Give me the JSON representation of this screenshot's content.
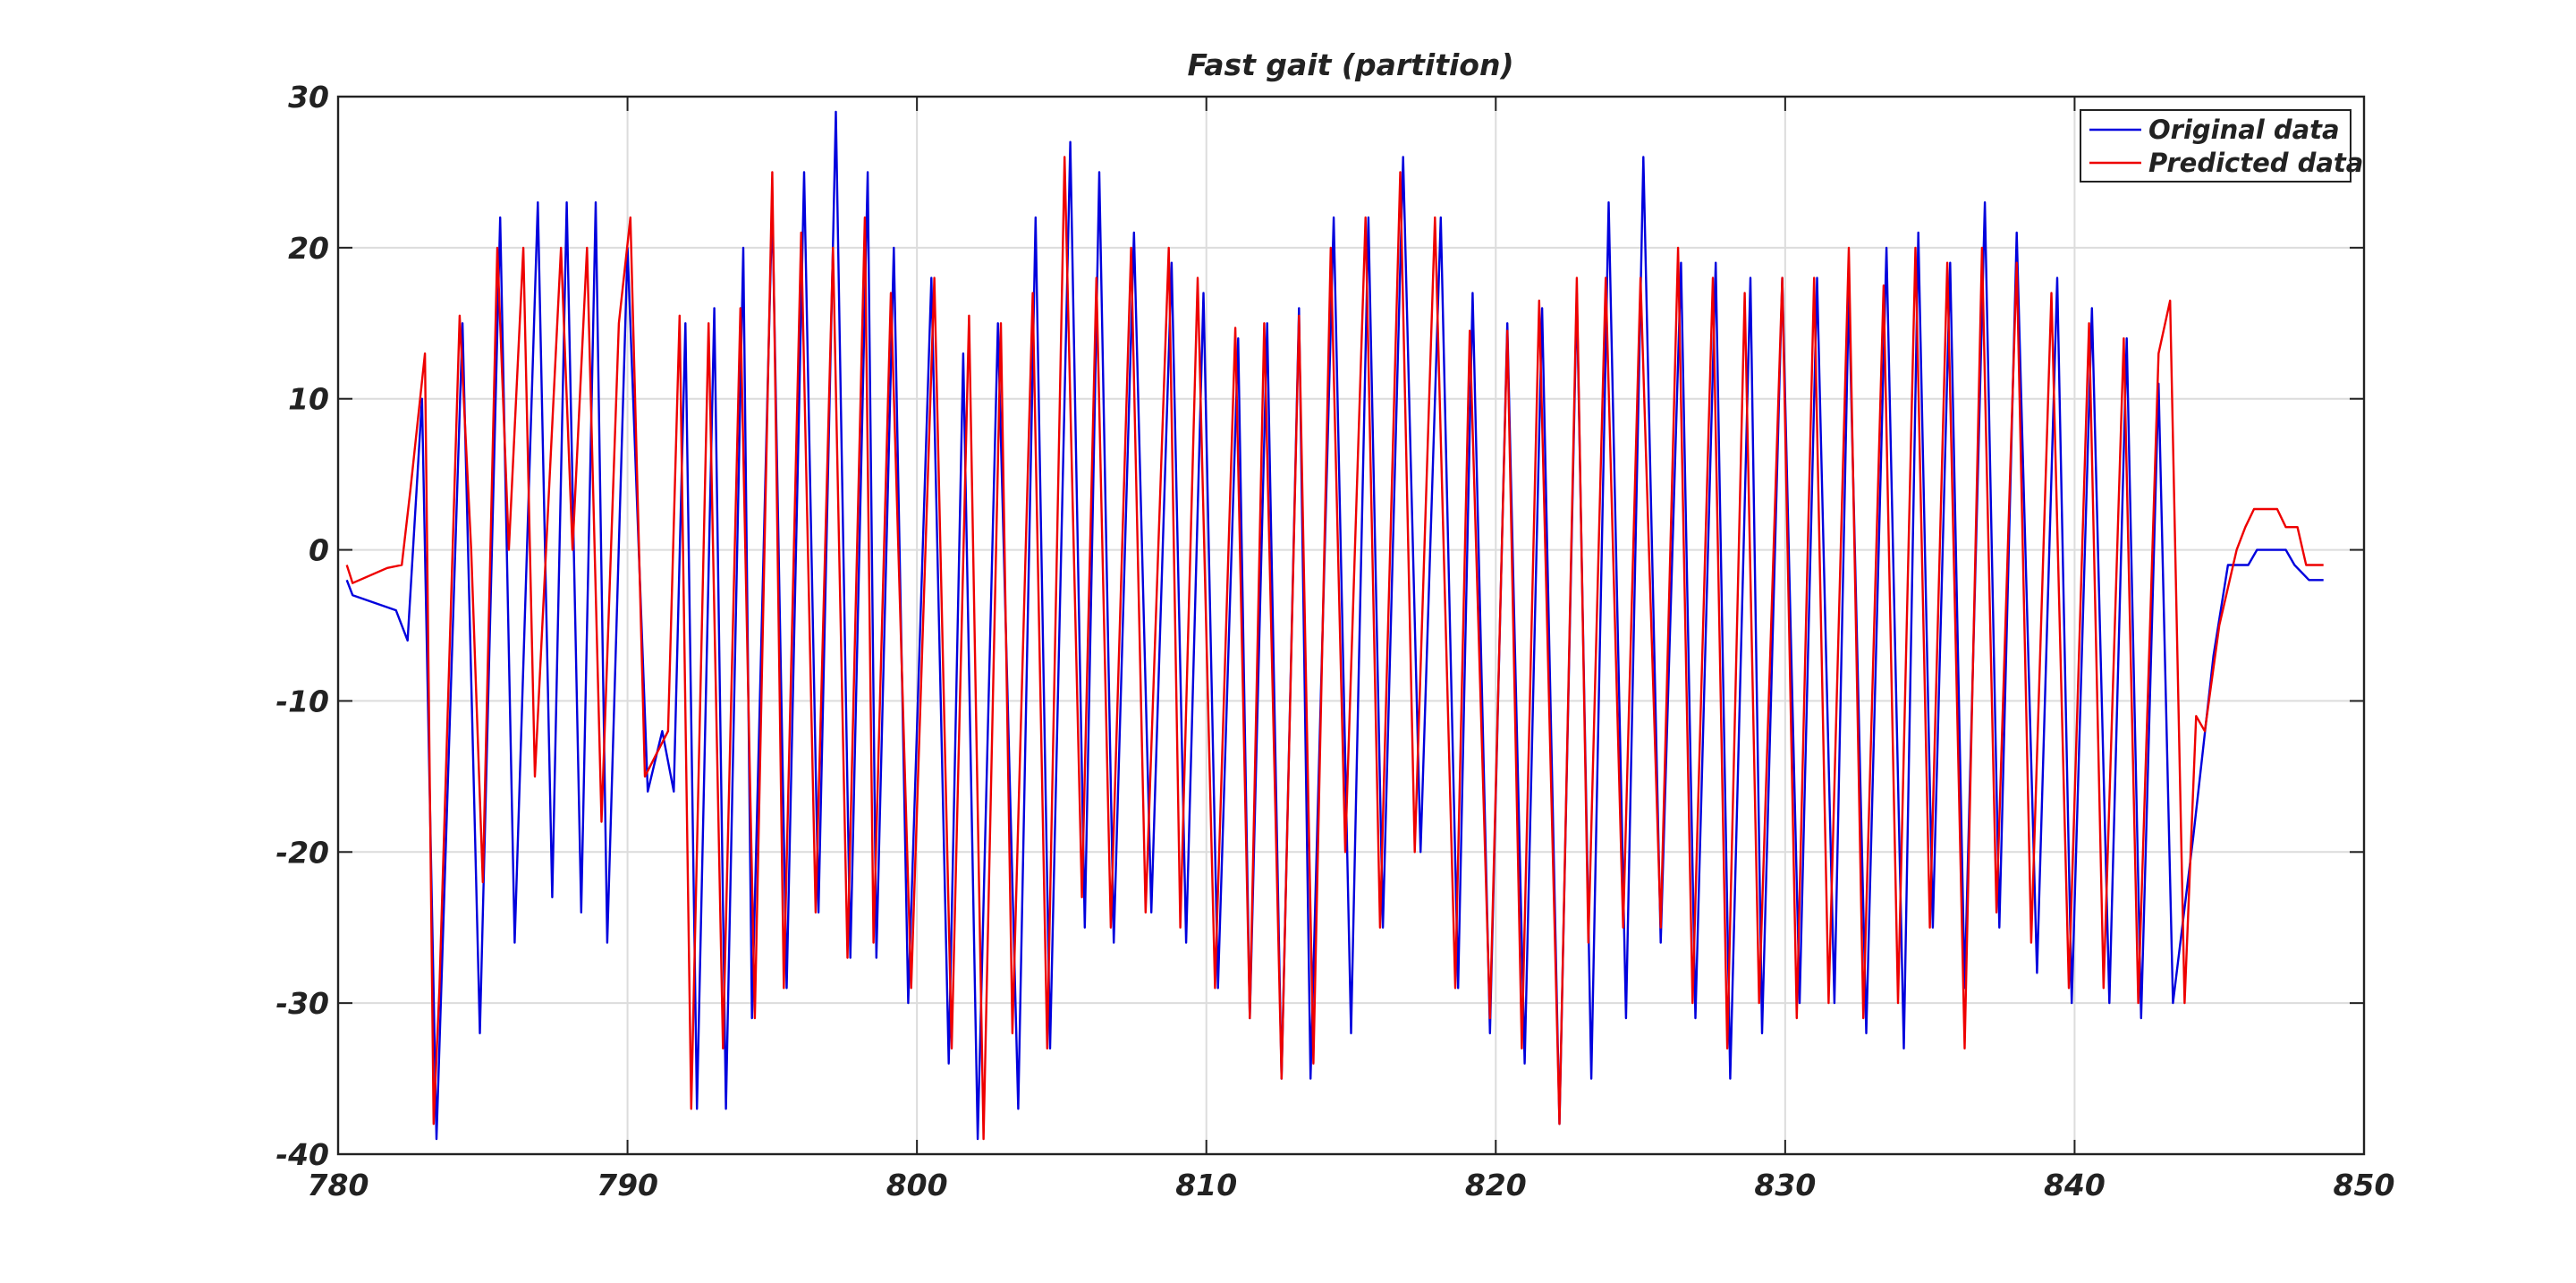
{
  "chart_data": {
    "type": "line",
    "title": "Fast gait (partition)",
    "xlim": [
      780,
      850
    ],
    "xticks": [
      780,
      790,
      800,
      810,
      820,
      830,
      840,
      850
    ],
    "ylim": [
      -40,
      30
    ],
    "yticks": [
      -40,
      -30,
      -20,
      -10,
      0,
      10,
      20,
      30
    ],
    "grid": true,
    "legend": "northeast",
    "series": [
      {
        "name": "Original data",
        "color": "#0000dd",
        "x": [
          780.3,
          780.5,
          782.0,
          782.4,
          782.9,
          783.4,
          784.3,
          784.9,
          785.6,
          786.1,
          786.9,
          787.4,
          787.9,
          788.4,
          788.9,
          789.3,
          790.0,
          790.7,
          791.2,
          791.6,
          792.0,
          792.4,
          793.0,
          793.4,
          794.0,
          794.3,
          795.0,
          795.5,
          796.1,
          796.6,
          797.2,
          797.7,
          798.3,
          798.6,
          799.2,
          799.7,
          800.5,
          801.1,
          801.6,
          802.1,
          802.8,
          803.5,
          804.1,
          804.6,
          805.3,
          805.8,
          806.3,
          806.8,
          807.5,
          808.1,
          808.8,
          809.3,
          809.9,
          810.4,
          811.1,
          811.5,
          812.1,
          812.6,
          813.2,
          813.6,
          814.4,
          815.0,
          815.6,
          816.1,
          816.8,
          817.4,
          818.1,
          818.7,
          819.2,
          819.8,
          820.4,
          821.0,
          821.6,
          822.2,
          822.8,
          823.3,
          823.9,
          824.5,
          825.1,
          825.7,
          826.4,
          826.9,
          827.6,
          828.1,
          828.8,
          829.2,
          829.9,
          830.5,
          831.1,
          831.7,
          832.2,
          832.8,
          833.5,
          834.1,
          834.6,
          835.1,
          835.7,
          836.2,
          836.9,
          837.4,
          838.0,
          838.7,
          839.4,
          839.9,
          840.6,
          841.2,
          841.8,
          842.3,
          842.9,
          843.4,
          844.1,
          844.8,
          845.3,
          846.0,
          846.3,
          847.3,
          847.6,
          848.1,
          848.6
        ],
        "values": [
          -2,
          -3,
          -4,
          -6,
          10,
          -39,
          15,
          -32,
          22,
          -26,
          23,
          -23,
          23,
          -24,
          23,
          -26,
          20,
          -16,
          -12,
          -16,
          15,
          -37,
          16,
          -37,
          20,
          -31,
          23,
          -29,
          25,
          -24,
          29,
          -27,
          25,
          -27,
          20,
          -30,
          18,
          -34,
          13,
          -39,
          15,
          -37,
          22,
          -33,
          27,
          -25,
          25,
          -26,
          21,
          -24,
          19,
          -26,
          17,
          -29,
          14,
          -31,
          15,
          -35,
          16,
          -35,
          22,
          -32,
          22,
          -25,
          26,
          -20,
          22,
          -29,
          17,
          -32,
          15,
          -34,
          16,
          -38,
          17,
          -35,
          23,
          -31,
          26,
          -26,
          19,
          -31,
          19,
          -35,
          18,
          -32,
          18,
          -30,
          18,
          -30,
          17,
          -32,
          20,
          -33,
          21,
          -25,
          19,
          -29,
          23,
          -25,
          21,
          -28,
          18,
          -30,
          16,
          -30,
          14,
          -31,
          11,
          -30,
          -19,
          -7,
          -1,
          -1,
          0,
          0,
          -1,
          -2,
          -2
        ]
      },
      {
        "name": "Predicted data",
        "color": "#ee0000",
        "x": [
          780.3,
          780.5,
          781.7,
          782.2,
          782.5,
          783.0,
          783.3,
          783.5,
          784.2,
          784.6,
          785.0,
          785.5,
          785.9,
          786.4,
          786.8,
          787.7,
          788.1,
          788.6,
          789.1,
          789.7,
          790.1,
          790.6,
          791.4,
          791.8,
          792.2,
          792.8,
          793.3,
          793.9,
          794.4,
          795.0,
          795.4,
          796.0,
          796.5,
          797.1,
          797.6,
          798.2,
          798.5,
          799.1,
          799.8,
          800.6,
          801.2,
          801.8,
          802.3,
          802.9,
          803.3,
          804.0,
          804.5,
          805.1,
          805.7,
          806.2,
          806.7,
          807.4,
          807.9,
          808.7,
          809.1,
          809.7,
          810.3,
          811.0,
          811.5,
          812.0,
          812.6,
          813.2,
          813.7,
          814.3,
          814.8,
          815.5,
          816.0,
          816.7,
          817.2,
          817.9,
          818.6,
          819.1,
          819.8,
          820.4,
          820.9,
          821.5,
          822.2,
          822.8,
          823.2,
          823.8,
          824.4,
          825.0,
          825.7,
          826.3,
          826.8,
          827.5,
          828.0,
          828.6,
          829.1,
          829.9,
          830.4,
          831.0,
          831.5,
          832.2,
          832.7,
          833.4,
          833.9,
          834.5,
          835.0,
          835.6,
          836.2,
          836.8,
          837.3,
          838.0,
          838.5,
          839.2,
          839.8,
          840.5,
          841.0,
          841.7,
          842.2,
          842.9,
          843.3,
          843.8,
          844.2,
          844.5,
          845.0,
          845.6,
          845.9,
          846.2,
          847.0,
          847.3,
          847.7,
          848.0,
          848.6
        ],
        "values": [
          -1,
          -2.2,
          -1.2,
          -1,
          4,
          13,
          -38,
          -29,
          15.5,
          0,
          -22,
          20,
          0,
          20,
          -15,
          20,
          0,
          20,
          -18,
          15,
          22,
          -15,
          -12,
          15.5,
          -37,
          15,
          -33,
          16,
          -31,
          25,
          -29,
          21,
          -24,
          20,
          -27,
          22,
          -26,
          17,
          -29,
          18,
          -33,
          15.5,
          -39,
          15,
          -32,
          17,
          -33,
          26,
          -23,
          18,
          -25,
          20,
          -24,
          20,
          -25,
          18,
          -29,
          14.7,
          -31,
          15,
          -35,
          15.5,
          -34,
          20,
          -20,
          22,
          -25,
          25,
          -20,
          22,
          -29,
          14.5,
          -31,
          14.5,
          -33,
          16.5,
          -38,
          18,
          -26,
          18,
          -25,
          18,
          -25,
          20,
          -30,
          18,
          -33,
          17,
          -30,
          18,
          -31,
          18,
          -30,
          20,
          -31,
          17.5,
          -30,
          20,
          -25,
          19,
          -33,
          20,
          -24,
          19,
          -26,
          17,
          -29,
          15,
          -29,
          14,
          -30,
          13,
          16.5,
          -30,
          -11,
          -12,
          -5,
          0,
          1.5,
          2.7,
          2.7,
          1.5,
          1.5,
          -1,
          -1
        ]
      }
    ]
  }
}
